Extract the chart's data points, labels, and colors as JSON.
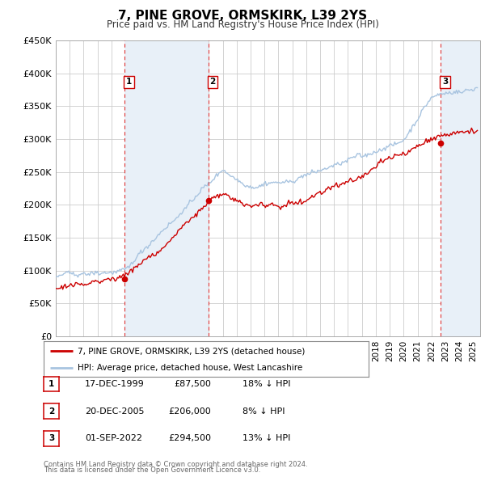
{
  "title": "7, PINE GROVE, ORMSKIRK, L39 2YS",
  "subtitle": "Price paid vs. HM Land Registry's House Price Index (HPI)",
  "ylim": [
    0,
    450000
  ],
  "yticks": [
    0,
    50000,
    100000,
    150000,
    200000,
    250000,
    300000,
    350000,
    400000,
    450000
  ],
  "ytick_labels": [
    "£0",
    "£50K",
    "£100K",
    "£150K",
    "£200K",
    "£250K",
    "£300K",
    "£350K",
    "£400K",
    "£450K"
  ],
  "xlim_start": 1995.0,
  "xlim_end": 2025.5,
  "hpi_color": "#a8c4e0",
  "price_color": "#cc0000",
  "vline_color": "#dd3333",
  "shade_color": "#ddeeff",
  "grid_color": "#cccccc",
  "background_color": "#ffffff",
  "transactions": [
    {
      "label": "1",
      "date_str": "17-DEC-1999",
      "year": 1999.96,
      "price": 87500
    },
    {
      "label": "2",
      "date_str": "20-DEC-2005",
      "year": 2005.96,
      "price": 206000
    },
    {
      "label": "3",
      "date_str": "01-SEP-2022",
      "year": 2022.67,
      "price": 294500
    }
  ],
  "legend_line1": "7, PINE GROVE, ORMSKIRK, L39 2YS (detached house)",
  "legend_line2": "HPI: Average price, detached house, West Lancashire",
  "footnote1": "Contains HM Land Registry data © Crown copyright and database right 2024.",
  "footnote2": "This data is licensed under the Open Government Licence v3.0.",
  "table_rows": [
    {
      "num": "1",
      "date": "17-DEC-1999",
      "price": "£87,500",
      "info": "18% ↓ HPI"
    },
    {
      "num": "2",
      "date": "20-DEC-2005",
      "price": "£206,000",
      "info": "8% ↓ HPI"
    },
    {
      "num": "3",
      "date": "01-SEP-2022",
      "price": "£294,500",
      "info": "13% ↓ HPI"
    }
  ]
}
